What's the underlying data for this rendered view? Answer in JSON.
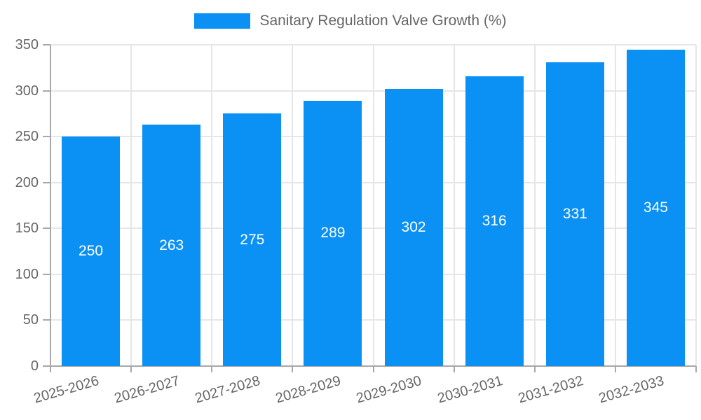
{
  "legend": {
    "label": "Sanitary Regulation Valve Growth (%)"
  },
  "chart_data": {
    "type": "bar",
    "title": "Sanitary Regulation Valve Growth (%)",
    "categories": [
      "2025-2026",
      "2026-2027",
      "2027-2028",
      "2028-2029",
      "2029-2030",
      "2030-2031",
      "2031-2032",
      "2032-2033"
    ],
    "values": [
      250,
      263,
      275,
      289,
      302,
      316,
      331,
      345
    ],
    "ytick_labels": [
      "0",
      "50",
      "100",
      "150",
      "200",
      "250",
      "300",
      "350"
    ],
    "yticks": [
      0,
      50,
      100,
      150,
      200,
      250,
      300,
      350
    ],
    "ylim": [
      0,
      350
    ],
    "grid": true,
    "legend_position": "top",
    "colors": {
      "bar": "#0b90f4",
      "value_label": "#ffffff",
      "axis_line": "#a8a8a8",
      "gridline": "#e6e6e6",
      "tick_text": "#666666",
      "legend_text": "#666666"
    }
  }
}
